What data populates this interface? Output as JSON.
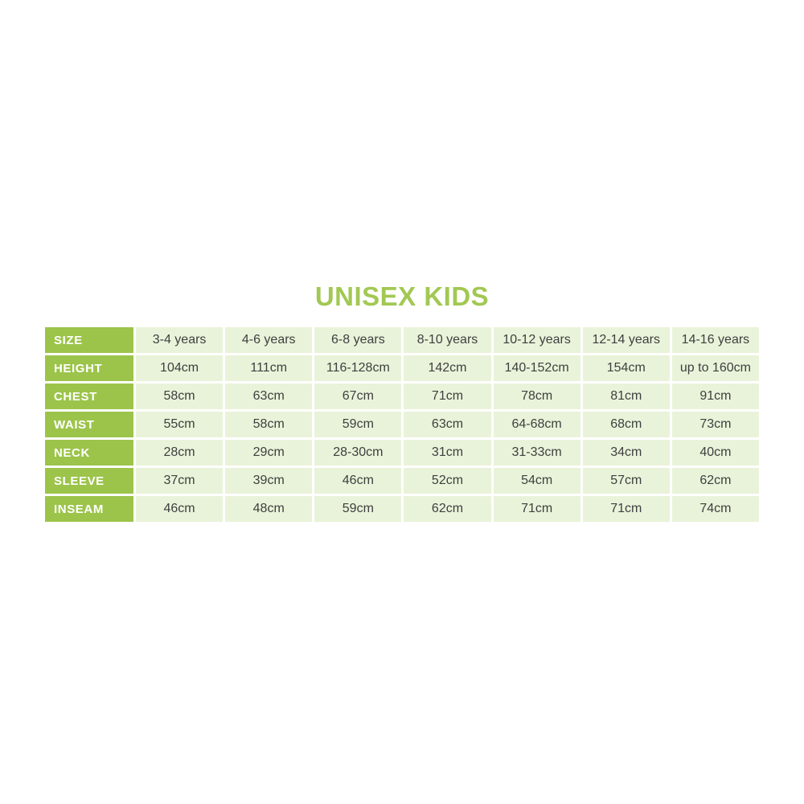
{
  "title": "UNISEX KIDS",
  "colors": {
    "title_green": "#a2c853",
    "label_cell_green": "#9cc44a",
    "data_cell_green": "#e9f3d9",
    "label_text": "#ffffff",
    "data_text": "#3e4040",
    "background": "#ffffff"
  },
  "chart_data": {
    "type": "table",
    "title": "UNISEX KIDS",
    "row_headers": [
      "SIZE",
      "HEIGHT",
      "CHEST",
      "WAIST",
      "NECK",
      "SLEEVE",
      "INSEAM"
    ],
    "rows": [
      [
        "SIZE",
        "3-4 years",
        "4-6 years",
        "6-8 years",
        "8-10 years",
        "10-12 years",
        "12-14 years",
        "14-16 years"
      ],
      [
        "HEIGHT",
        "104cm",
        "111cm",
        "116-128cm",
        "142cm",
        "140-152cm",
        "154cm",
        "up to 160cm"
      ],
      [
        "CHEST",
        "58cm",
        "63cm",
        "67cm",
        "71cm",
        "78cm",
        "81cm",
        "91cm"
      ],
      [
        "WAIST",
        "55cm",
        "58cm",
        "59cm",
        "63cm",
        "64-68cm",
        "68cm",
        "73cm"
      ],
      [
        "NECK",
        "28cm",
        "29cm",
        "28-30cm",
        "31cm",
        "31-33cm",
        "34cm",
        "40cm"
      ],
      [
        "SLEEVE",
        "37cm",
        "39cm",
        "46cm",
        "52cm",
        "54cm",
        "57cm",
        "62cm"
      ],
      [
        "INSEAM",
        "46cm",
        "48cm",
        "59cm",
        "62cm",
        "71cm",
        "71cm",
        "74cm"
      ]
    ]
  }
}
